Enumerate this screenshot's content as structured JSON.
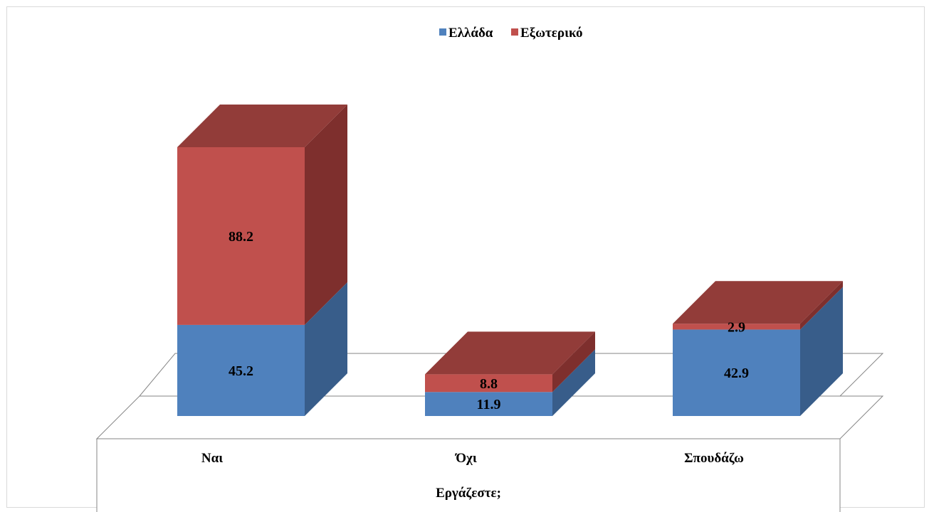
{
  "chart_data": {
    "type": "bar",
    "stacked": true,
    "three_d": true,
    "xlabel": "Εργάζεστε;",
    "ylabel": "",
    "categories": [
      "Ναι",
      "Όχι",
      "Σπουδάζω"
    ],
    "series": [
      {
        "name": "Ελλάδα",
        "values": [
          45.2,
          11.9,
          42.9
        ],
        "color": "#4f81bd"
      },
      {
        "name": "Εξωτερικό",
        "values": [
          88.2,
          8.8,
          2.9
        ],
        "color": "#c0504d"
      }
    ],
    "ylim": [
      0,
      140
    ],
    "grid": false,
    "legend_position": "top-center"
  }
}
